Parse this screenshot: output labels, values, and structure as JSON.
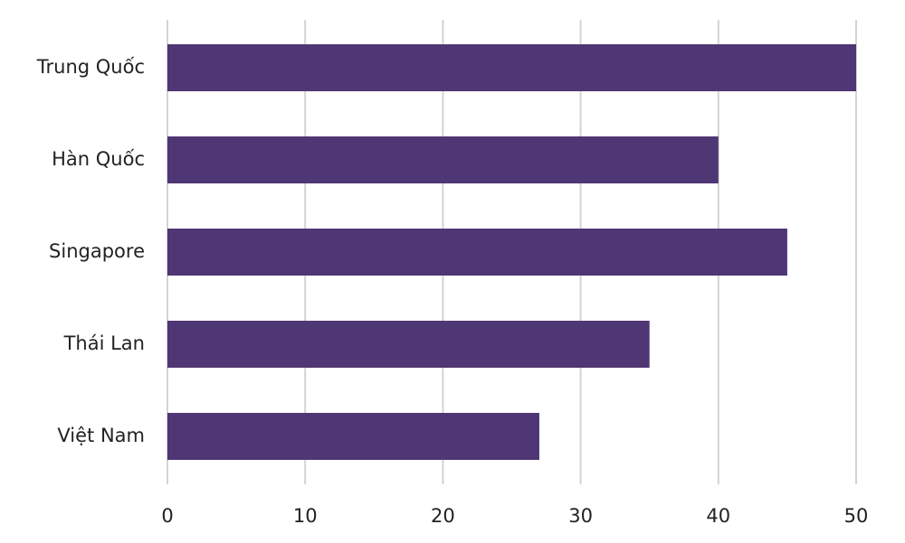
{
  "chart_data": {
    "type": "hbar",
    "categories": [
      "Trung Quốc",
      "Hàn Quốc",
      "Singapore",
      "Thái Lan",
      "Việt Nam"
    ],
    "values": [
      50,
      40,
      45,
      35,
      27
    ],
    "color": "#4f3674",
    "xlim": [
      0,
      50
    ],
    "xticks": [
      0,
      10,
      20,
      30,
      40,
      50
    ],
    "grid": true
  }
}
